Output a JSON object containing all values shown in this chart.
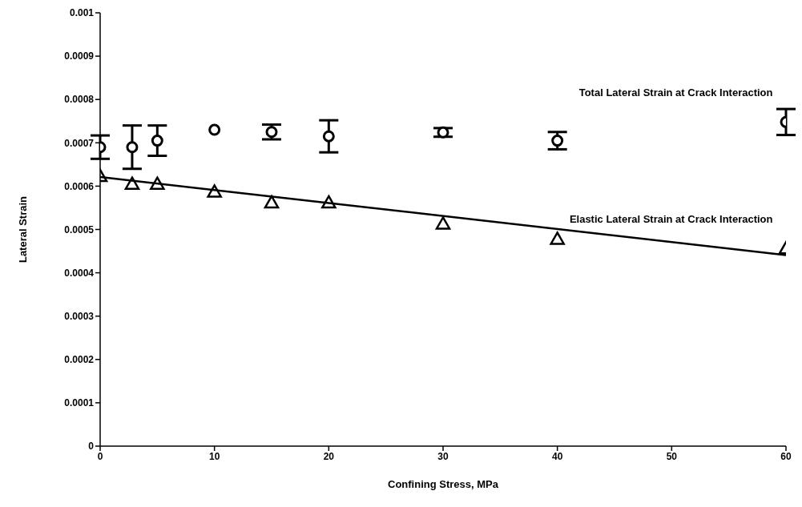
{
  "chart_data": {
    "type": "scatter",
    "xlabel": "Confining Stress, MPa",
    "ylabel": "Lateral Strain",
    "xlim": [
      0,
      60
    ],
    "xticks": [
      0,
      10,
      20,
      30,
      40,
      50,
      60
    ],
    "ylim": [
      0,
      0.001
    ],
    "yticks": [
      0,
      0.0001,
      0.0002,
      0.0003,
      0.0004,
      0.0005,
      0.0006,
      0.0007,
      0.0008,
      0.0009,
      0.001
    ],
    "grid": false,
    "series": [
      {
        "name": "Total Lateral Strain at Crack Interaction",
        "color": "#000000",
        "marker": "circle",
        "x": [
          0,
          2.8,
          5,
          10,
          15,
          20,
          30,
          40,
          60
        ],
        "values": [
          0.00069,
          0.00069,
          0.000705,
          0.00073,
          0.000725,
          0.000715,
          0.000724,
          0.000705,
          0.000748
        ],
        "errors": [
          2.7e-05,
          5e-05,
          3.5e-05,
          null,
          1.7e-05,
          3.7e-05,
          1e-05,
          2e-05,
          3e-05
        ]
      },
      {
        "name": "Elastic Lateral Strain at Crack Interaction",
        "color": "#000000",
        "marker": "triangle",
        "x": [
          0,
          2.8,
          5,
          10,
          15,
          20,
          30,
          40,
          60
        ],
        "values": [
          0.000623,
          0.000605,
          0.000605,
          0.000587,
          0.000562,
          0.000562,
          0.000513,
          0.000478,
          0.000456
        ]
      },
      {
        "type": "line",
        "color": "#000000",
        "marker": "none",
        "x": [
          0,
          60
        ],
        "values": [
          0.000621,
          0.000441
        ]
      }
    ]
  }
}
